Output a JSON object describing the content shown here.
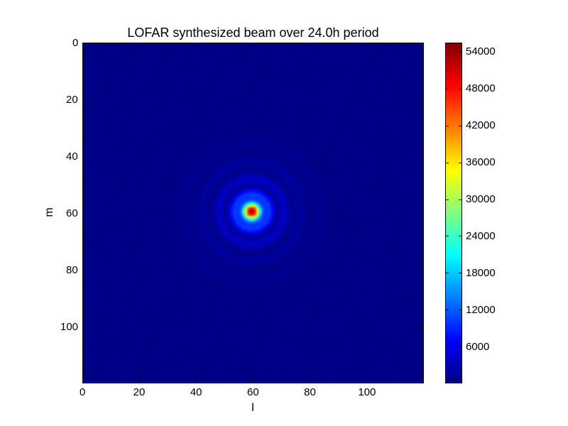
{
  "chart_data": {
    "type": "heatmap",
    "title": "LOFAR synthesized beam over 24.0h period",
    "xlabel": "l",
    "ylabel": "m",
    "grid_size": [
      120,
      120
    ],
    "x_ticks": [
      0,
      20,
      40,
      60,
      80,
      100
    ],
    "y_ticks": [
      0,
      20,
      40,
      60,
      80,
      100
    ],
    "xlim": [
      0,
      120
    ],
    "ylim": [
      120,
      0
    ],
    "y_axis_inverted": true,
    "colormap": "jet",
    "colorbar": {
      "vmin": 0,
      "vmax": 55500,
      "ticks": [
        6000,
        12000,
        18000,
        24000,
        30000,
        36000,
        42000,
        48000,
        54000
      ]
    },
    "peak": {
      "l": 59,
      "m": 59,
      "value": 55500
    },
    "main_lobe_half_width": 2.1,
    "sidelobe_rings": [
      {
        "radius": 6.2,
        "value": 9000
      },
      {
        "radius": 11.5,
        "value": 3300
      },
      {
        "radius": 17.5,
        "value": 1300
      },
      {
        "radius": 24,
        "value": 650
      }
    ],
    "background_value": 400,
    "colors": {
      "frame": "#000000",
      "background": "#ffffff"
    }
  }
}
